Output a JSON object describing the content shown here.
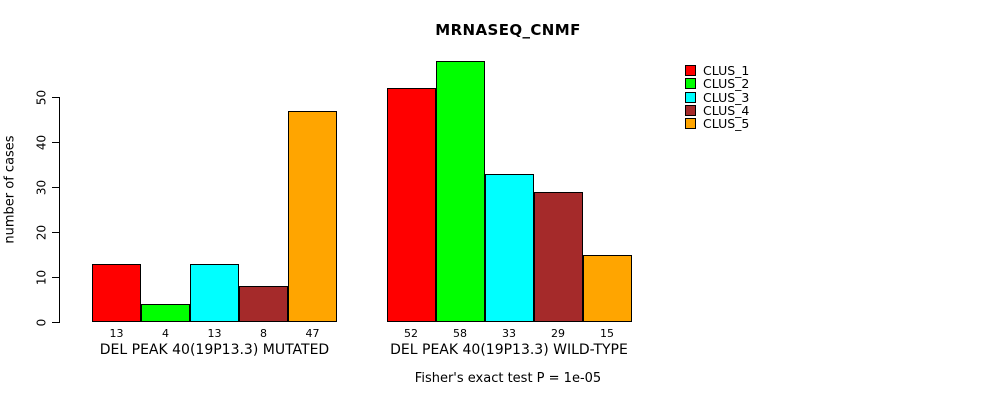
{
  "title": "MRNASEQ_CNMF",
  "ylabel": "number of cases",
  "footer": "Fisher's exact test P = 1e-05",
  "chart_data": {
    "type": "bar",
    "title": "MRNASEQ_CNMF",
    "xlabel": "",
    "ylabel": "number of cases",
    "ylim": [
      0,
      58
    ],
    "yticks": [
      0,
      10,
      20,
      30,
      40,
      50
    ],
    "grid": false,
    "legend_position": "right",
    "series": [
      {
        "name": "CLUS_1",
        "color": "#FF0000"
      },
      {
        "name": "CLUS_2",
        "color": "#00FF00"
      },
      {
        "name": "CLUS_3",
        "color": "#00FFFF"
      },
      {
        "name": "CLUS_4",
        "color": "#A52A2A"
      },
      {
        "name": "CLUS_5",
        "color": "#FFA500"
      }
    ],
    "groups": [
      {
        "label": "DEL PEAK 40(19P13.3) MUTATED",
        "values": [
          13,
          4,
          13,
          8,
          47
        ]
      },
      {
        "label": "DEL PEAK 40(19P13.3) WILD-TYPE",
        "values": [
          52,
          58,
          33,
          29,
          15
        ]
      }
    ]
  }
}
